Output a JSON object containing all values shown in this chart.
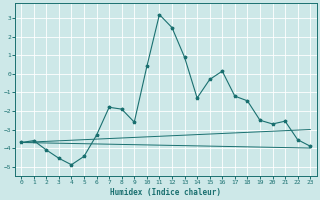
{
  "xlabel": "Humidex (Indice chaleur)",
  "background_color": "#cde8e8",
  "grid_color": "#ffffff",
  "line_color": "#1a7070",
  "xlim": [
    -0.5,
    23.5
  ],
  "ylim": [
    -5.5,
    3.8
  ],
  "yticks": [
    -5,
    -4,
    -3,
    -2,
    -1,
    0,
    1,
    2,
    3
  ],
  "xticks": [
    0,
    1,
    2,
    3,
    4,
    5,
    6,
    7,
    8,
    9,
    10,
    11,
    12,
    13,
    14,
    15,
    16,
    17,
    18,
    19,
    20,
    21,
    22,
    23
  ],
  "flat_line1": {
    "x": [
      0,
      23
    ],
    "y": [
      -3.7,
      -4.0
    ]
  },
  "flat_line2": {
    "x": [
      0,
      23
    ],
    "y": [
      -3.7,
      -3.0
    ]
  },
  "wavy_x": [
    0,
    1,
    2,
    3,
    4,
    5,
    6,
    7,
    8,
    9,
    10,
    11,
    12,
    13,
    14,
    15,
    16,
    17,
    18,
    19,
    20,
    21,
    22,
    23
  ],
  "wavy_y": [
    -3.7,
    -3.6,
    -4.1,
    -4.55,
    -4.9,
    -4.45,
    -3.3,
    -1.8,
    -1.9,
    -2.6,
    0.4,
    3.2,
    2.5,
    0.9,
    -1.3,
    -0.3,
    0.15,
    -1.2,
    -1.45,
    -2.5,
    -2.7,
    -2.55,
    -3.55,
    -3.9
  ]
}
